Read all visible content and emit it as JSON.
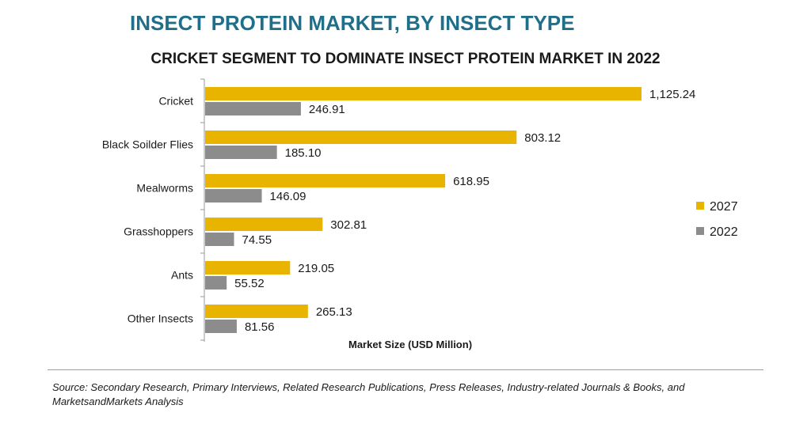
{
  "header": {
    "title": "INSECT PROTEIN MARKET, BY INSECT TYPE",
    "subtitle": "CRICKET SEGMENT TO DOMINATE INSECT PROTEIN MARKET IN 2022"
  },
  "chart_data": {
    "type": "bar",
    "orientation": "horizontal",
    "categories": [
      "Cricket",
      "Black Soilder Flies",
      "Mealworms",
      "Grasshoppers",
      "Ants",
      "Other Insects"
    ],
    "series": [
      {
        "name": "2027",
        "color": "#e8b400",
        "values": [
          1125.24,
          803.12,
          618.95,
          302.81,
          219.05,
          265.13
        ],
        "labels": [
          "1,125.24",
          "803.12",
          "618.95",
          "302.81",
          "219.05",
          "265.13"
        ]
      },
      {
        "name": "2022",
        "color": "#8c8c8c",
        "values": [
          246.91,
          185.1,
          146.09,
          74.55,
          55.52,
          81.56
        ],
        "labels": [
          "246.91",
          "185.10",
          "146.09",
          "74.55",
          "55.52",
          "81.56"
        ]
      }
    ],
    "xlabel": "Market Size (USD Million)",
    "xlim": [
      0,
      1200
    ],
    "grid": false,
    "legend": "right"
  },
  "footer": {
    "source": "Source: Secondary Research, Primary Interviews, Related Research Publications, Press Releases, Industry-related Journals & Books, and MarketsandMarkets Analysis"
  }
}
